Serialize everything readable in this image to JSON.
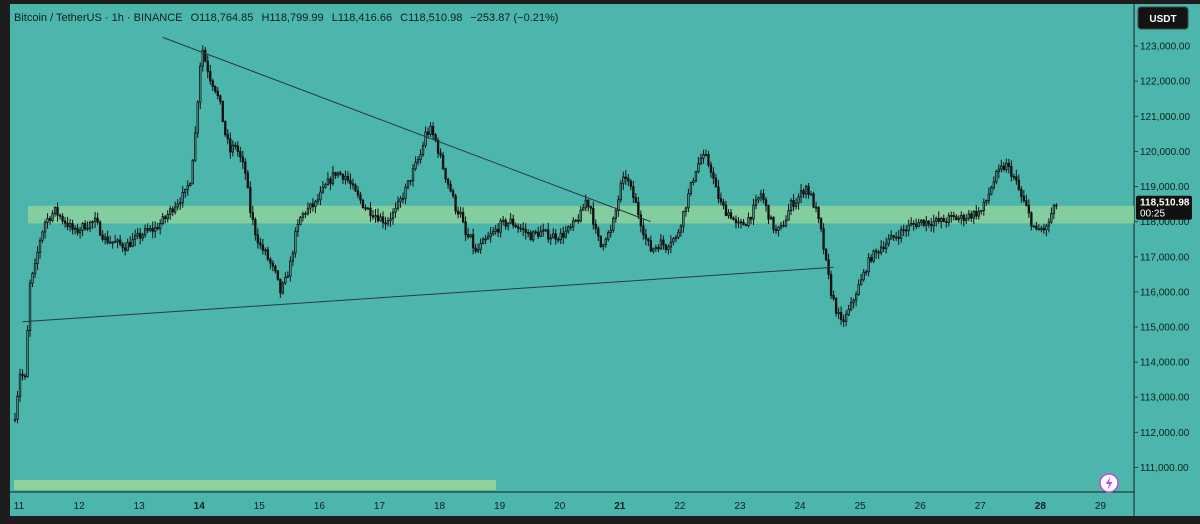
{
  "header": {
    "symbol": "Bitcoin / TetherUS · 1h · BINANCE",
    "open": "O118,764.85",
    "high": "H118,799.99",
    "low": "L118,416.66",
    "close": "C118,510.98",
    "change": "−253.87 (−0.21%)"
  },
  "currency_button": "USDT",
  "current_price": {
    "value": "118,510.98",
    "countdown": "00:25"
  },
  "colors": {
    "background": "#4db6ac",
    "frame": "#1d1d1d",
    "candle": "#111111",
    "zone": "#8ed19c",
    "line": "#2a3a3a"
  },
  "icons": {
    "settings": "lightning-icon"
  },
  "chart_data": {
    "type": "candlestick",
    "x_ticks": [
      {
        "label": "11",
        "pos": 0,
        "bold": false
      },
      {
        "label": "12",
        "pos": 24,
        "bold": false
      },
      {
        "label": "13",
        "pos": 48,
        "bold": false
      },
      {
        "label": "14",
        "pos": 72,
        "bold": true
      },
      {
        "label": "15",
        "pos": 96,
        "bold": false
      },
      {
        "label": "16",
        "pos": 120,
        "bold": false
      },
      {
        "label": "17",
        "pos": 144,
        "bold": false
      },
      {
        "label": "18",
        "pos": 168,
        "bold": false
      },
      {
        "label": "19",
        "pos": 192,
        "bold": false
      },
      {
        "label": "20",
        "pos": 216,
        "bold": false
      },
      {
        "label": "21",
        "pos": 240,
        "bold": true
      },
      {
        "label": "22",
        "pos": 264,
        "bold": false
      },
      {
        "label": "23",
        "pos": 288,
        "bold": false
      },
      {
        "label": "24",
        "pos": 312,
        "bold": false
      },
      {
        "label": "25",
        "pos": 336,
        "bold": false
      },
      {
        "label": "26",
        "pos": 360,
        "bold": false
      },
      {
        "label": "27",
        "pos": 384,
        "bold": false
      },
      {
        "label": "28",
        "pos": 408,
        "bold": true
      },
      {
        "label": "29",
        "pos": 432,
        "bold": false
      }
    ],
    "y_ticks": [
      "111,000.00",
      "112,000.00",
      "113,000.00",
      "114,000.00",
      "115,000.00",
      "116,000.00",
      "117,000.00",
      "118,000.00",
      "119,000.00",
      "120,000.00",
      "121,000.00",
      "122,000.00",
      "123,000.00"
    ],
    "ylim": [
      110300,
      124200
    ],
    "xlim": [
      -2,
      447
    ],
    "close_anchors": [
      [
        0,
        112500
      ],
      [
        2,
        113700
      ],
      [
        4,
        113500
      ],
      [
        6,
        116200
      ],
      [
        8,
        116700
      ],
      [
        10,
        117500
      ],
      [
        12,
        118000
      ],
      [
        16,
        118300
      ],
      [
        20,
        118000
      ],
      [
        24,
        117700
      ],
      [
        28,
        117900
      ],
      [
        32,
        118000
      ],
      [
        36,
        117500
      ],
      [
        40,
        117400
      ],
      [
        44,
        117300
      ],
      [
        48,
        117500
      ],
      [
        52,
        117700
      ],
      [
        56,
        117800
      ],
      [
        60,
        118100
      ],
      [
        64,
        118500
      ],
      [
        68,
        118800
      ],
      [
        70,
        119200
      ],
      [
        72,
        120500
      ],
      [
        73,
        121500
      ],
      [
        74,
        122500
      ],
      [
        75,
        122900
      ],
      [
        76,
        122600
      ],
      [
        78,
        122100
      ],
      [
        80,
        121800
      ],
      [
        82,
        121300
      ],
      [
        84,
        120500
      ],
      [
        86,
        120000
      ],
      [
        88,
        120200
      ],
      [
        90,
        119800
      ],
      [
        92,
        119400
      ],
      [
        94,
        118300
      ],
      [
        96,
        117700
      ],
      [
        98,
        117300
      ],
      [
        100,
        117100
      ],
      [
        102,
        116800
      ],
      [
        104,
        116500
      ],
      [
        106,
        116000
      ],
      [
        108,
        116300
      ],
      [
        110,
        116800
      ],
      [
        112,
        117600
      ],
      [
        114,
        118100
      ],
      [
        116,
        118300
      ],
      [
        120,
        118500
      ],
      [
        124,
        119000
      ],
      [
        128,
        119400
      ],
      [
        132,
        119300
      ],
      [
        136,
        118800
      ],
      [
        140,
        118400
      ],
      [
        144,
        118200
      ],
      [
        148,
        118000
      ],
      [
        152,
        118300
      ],
      [
        156,
        118900
      ],
      [
        160,
        119600
      ],
      [
        162,
        119900
      ],
      [
        164,
        120500
      ],
      [
        166,
        120600
      ],
      [
        168,
        120300
      ],
      [
        170,
        119800
      ],
      [
        172,
        119300
      ],
      [
        174,
        118900
      ],
      [
        176,
        118400
      ],
      [
        178,
        118200
      ],
      [
        180,
        117600
      ],
      [
        182,
        117500
      ],
      [
        184,
        117100
      ],
      [
        186,
        117300
      ],
      [
        190,
        117600
      ],
      [
        194,
        117900
      ],
      [
        198,
        118000
      ],
      [
        202,
        117800
      ],
      [
        206,
        117600
      ],
      [
        210,
        117700
      ],
      [
        214,
        117600
      ],
      [
        218,
        117600
      ],
      [
        222,
        117800
      ],
      [
        226,
        118200
      ],
      [
        228,
        118600
      ],
      [
        230,
        118400
      ],
      [
        232,
        117700
      ],
      [
        234,
        117300
      ],
      [
        236,
        117600
      ],
      [
        238,
        117700
      ],
      [
        240,
        118300
      ],
      [
        242,
        119000
      ],
      [
        244,
        119300
      ],
      [
        246,
        118900
      ],
      [
        248,
        118500
      ],
      [
        250,
        118000
      ],
      [
        252,
        117500
      ],
      [
        254,
        117200
      ],
      [
        256,
        117300
      ],
      [
        258,
        117400
      ],
      [
        260,
        117300
      ],
      [
        262,
        117500
      ],
      [
        264,
        117500
      ],
      [
        266,
        118000
      ],
      [
        268,
        118500
      ],
      [
        270,
        119000
      ],
      [
        272,
        119500
      ],
      [
        274,
        119800
      ],
      [
        276,
        119800
      ],
      [
        278,
        119500
      ],
      [
        280,
        118900
      ],
      [
        282,
        118500
      ],
      [
        284,
        118300
      ],
      [
        286,
        118200
      ],
      [
        288,
        117900
      ],
      [
        290,
        117900
      ],
      [
        292,
        118000
      ],
      [
        294,
        118200
      ],
      [
        296,
        118500
      ],
      [
        298,
        118800
      ],
      [
        300,
        118400
      ],
      [
        302,
        118000
      ],
      [
        304,
        117700
      ],
      [
        306,
        117800
      ],
      [
        308,
        118100
      ],
      [
        310,
        118500
      ],
      [
        312,
        118600
      ],
      [
        314,
        118800
      ],
      [
        316,
        119000
      ],
      [
        318,
        118700
      ],
      [
        320,
        118300
      ],
      [
        322,
        117700
      ],
      [
        324,
        116800
      ],
      [
        326,
        116000
      ],
      [
        328,
        115500
      ],
      [
        330,
        115100
      ],
      [
        332,
        115300
      ],
      [
        334,
        115600
      ],
      [
        336,
        116000
      ],
      [
        338,
        116300
      ],
      [
        340,
        116700
      ],
      [
        342,
        117000
      ],
      [
        344,
        117100
      ],
      [
        346,
        117300
      ],
      [
        350,
        117500
      ],
      [
        354,
        117700
      ],
      [
        358,
        117900
      ],
      [
        362,
        118000
      ],
      [
        366,
        118000
      ],
      [
        370,
        118000
      ],
      [
        374,
        118100
      ],
      [
        378,
        118100
      ],
      [
        382,
        118200
      ],
      [
        386,
        118300
      ],
      [
        388,
        118600
      ],
      [
        390,
        119000
      ],
      [
        392,
        119300
      ],
      [
        394,
        119500
      ],
      [
        396,
        119600
      ],
      [
        398,
        119400
      ],
      [
        400,
        119100
      ],
      [
        402,
        118700
      ],
      [
        404,
        118400
      ],
      [
        406,
        118000
      ],
      [
        408,
        117700
      ],
      [
        410,
        117800
      ],
      [
        412,
        117800
      ],
      [
        414,
        118200
      ],
      [
        416,
        118500
      ]
    ],
    "support_zone": {
      "y_range": [
        117950,
        118450
      ]
    },
    "lines": [
      {
        "name": "upper-trendline",
        "from": [
          59,
          123250
        ],
        "to": [
          254,
          118000
        ]
      },
      {
        "name": "lower-trendline",
        "from": [
          3,
          115150
        ],
        "to": [
          327,
          116700
        ]
      }
    ]
  }
}
